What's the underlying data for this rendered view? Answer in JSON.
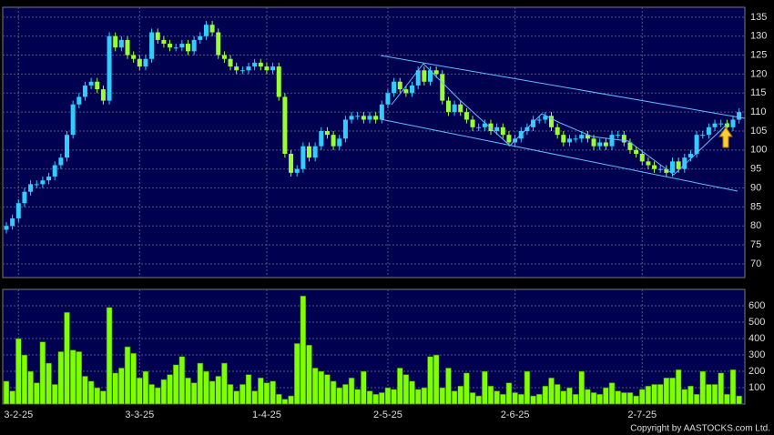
{
  "chart_data": {
    "type": "candlestick",
    "categories": [
      null,
      null,
      "3-2-25",
      null,
      null,
      null,
      null,
      null,
      null,
      null,
      null,
      null,
      null,
      null,
      null,
      null,
      null,
      null,
      null,
      null,
      null,
      null,
      "3-3-25",
      null,
      null,
      null,
      null,
      null,
      null,
      null,
      null,
      null,
      null,
      null,
      null,
      null,
      null,
      null,
      null,
      null,
      null,
      null,
      null,
      "1-4-25",
      null,
      null,
      null,
      null,
      null,
      null,
      null,
      null,
      null,
      null,
      null,
      null,
      null,
      null,
      null,
      null,
      null,
      null,
      null,
      "2-5-25",
      null,
      null,
      null,
      null,
      null,
      null,
      null,
      null,
      null,
      null,
      null,
      null,
      null,
      null,
      null,
      null,
      null,
      null,
      null,
      null,
      "2-6-25",
      null,
      null,
      null,
      null,
      null,
      null,
      null,
      null,
      null,
      null,
      null,
      null,
      null,
      null,
      null,
      null,
      null,
      null,
      null,
      null,
      "2-7-25",
      null,
      null,
      null,
      null,
      null,
      null,
      null,
      null,
      null,
      null,
      null,
      null,
      null,
      null,
      null,
      null
    ],
    "open": [
      79,
      80,
      82,
      86,
      89,
      91,
      91,
      92,
      93,
      96,
      98,
      104,
      112,
      114,
      117,
      118,
      116,
      113,
      130,
      127,
      129,
      125,
      124,
      122,
      124,
      131,
      129,
      128,
      127,
      127,
      128,
      126,
      129,
      130,
      133,
      131,
      125,
      124,
      122,
      121,
      121,
      122,
      123,
      122,
      121,
      122,
      114,
      99,
      94,
      95,
      101,
      98,
      101,
      105,
      104,
      101,
      103,
      108,
      109,
      109,
      108,
      109,
      108,
      112,
      115,
      118,
      116,
      115,
      117,
      121,
      118,
      121,
      120,
      113,
      110,
      112,
      110,
      108,
      106,
      106,
      107,
      105,
      106,
      104,
      102,
      103,
      105,
      106,
      108,
      108,
      109,
      106,
      104,
      102,
      103,
      103,
      104,
      103,
      101,
      102,
      101,
      104,
      104,
      102,
      100,
      99,
      97,
      96,
      95,
      95,
      94,
      97,
      95,
      98,
      99,
      104,
      104,
      106,
      107,
      107,
      106,
      108
    ],
    "high": [
      81,
      83,
      87,
      90,
      92,
      92,
      93,
      94,
      97,
      99,
      105,
      113,
      115,
      118,
      119,
      119,
      117,
      131,
      131,
      130,
      130,
      126,
      125,
      125,
      132,
      132,
      130,
      129,
      128,
      129,
      129,
      130,
      131,
      134,
      134,
      132,
      126,
      125,
      123,
      122,
      123,
      124,
      124,
      123,
      123,
      123,
      115,
      100,
      96,
      102,
      102,
      102,
      106,
      106,
      105,
      104,
      109,
      110,
      110,
      110,
      110,
      110,
      113,
      116,
      119,
      119,
      117,
      118,
      122,
      122,
      122,
      122,
      121,
      114,
      113,
      113,
      111,
      109,
      107,
      108,
      108,
      107,
      107,
      105,
      104,
      106,
      107,
      109,
      109,
      110,
      110,
      107,
      105,
      104,
      104,
      105,
      105,
      104,
      103,
      103,
      105,
      105,
      105,
      103,
      101,
      100,
      98,
      97,
      96,
      96,
      98,
      98,
      99,
      100,
      105,
      105,
      107,
      108,
      108,
      108,
      109,
      111
    ],
    "low": [
      78,
      79,
      81,
      85,
      88,
      90,
      90,
      91,
      92,
      95,
      97,
      103,
      111,
      113,
      116,
      115,
      112,
      112,
      126,
      126,
      124,
      123,
      121,
      121,
      123,
      128,
      127,
      126,
      126,
      126,
      125,
      125,
      128,
      129,
      130,
      124,
      123,
      121,
      120,
      120,
      120,
      121,
      121,
      120,
      120,
      113,
      98,
      93,
      93,
      94,
      97,
      97,
      100,
      103,
      100,
      100,
      102,
      107,
      108,
      107,
      107,
      107,
      107,
      111,
      114,
      115,
      114,
      114,
      116,
      117,
      117,
      119,
      112,
      109,
      109,
      109,
      107,
      105,
      105,
      105,
      104,
      104,
      103,
      101,
      101,
      102,
      104,
      105,
      107,
      107,
      105,
      103,
      101,
      101,
      102,
      102,
      102,
      100,
      100,
      100,
      100,
      103,
      101,
      99,
      98,
      96,
      95,
      94,
      94,
      93,
      93,
      94,
      94,
      97,
      98,
      103,
      103,
      105,
      106,
      105,
      105,
      107
    ],
    "close": [
      80,
      82,
      86,
      89,
      91,
      91,
      92,
      93,
      96,
      98,
      104,
      112,
      114,
      117,
      118,
      116,
      113,
      130,
      127,
      129,
      125,
      124,
      122,
      124,
      131,
      129,
      128,
      127,
      127,
      128,
      126,
      129,
      130,
      133,
      131,
      125,
      124,
      122,
      121,
      121,
      122,
      123,
      122,
      121,
      122,
      114,
      99,
      94,
      95,
      101,
      98,
      101,
      105,
      104,
      101,
      103,
      108,
      109,
      109,
      108,
      109,
      108,
      112,
      115,
      118,
      116,
      115,
      117,
      121,
      118,
      121,
      120,
      113,
      110,
      112,
      110,
      108,
      106,
      106,
      107,
      105,
      106,
      104,
      102,
      103,
      105,
      106,
      108,
      108,
      109,
      106,
      104,
      102,
      103,
      103,
      104,
      103,
      101,
      102,
      101,
      104,
      104,
      102,
      100,
      99,
      97,
      96,
      95,
      95,
      94,
      97,
      95,
      98,
      99,
      104,
      104,
      106,
      107,
      107,
      106,
      108,
      110
    ],
    "volume": [
      140,
      80,
      400,
      300,
      200,
      130,
      380,
      250,
      120,
      320,
      560,
      330,
      320,
      170,
      140,
      100,
      80,
      590,
      190,
      220,
      350,
      310,
      160,
      200,
      120,
      100,
      150,
      180,
      240,
      290,
      160,
      130,
      250,
      200,
      140,
      170,
      250,
      120,
      80,
      120,
      180,
      80,
      160,
      130,
      140,
      60,
      30,
      50,
      370,
      660,
      360,
      220,
      200,
      180,
      140,
      100,
      120,
      160,
      90,
      200,
      80,
      60,
      70,
      100,
      90,
      220,
      180,
      140,
      90,
      100,
      290,
      300,
      100,
      220,
      80,
      110,
      190,
      70,
      50,
      200,
      110,
      80,
      60,
      130,
      70,
      60,
      200,
      50,
      60,
      110,
      160,
      120,
      80,
      100,
      60,
      200,
      90,
      70,
      60,
      100,
      130,
      80,
      70,
      70,
      50,
      90,
      110,
      120,
      120,
      160,
      160,
      210,
      90,
      110,
      60,
      200,
      120,
      120,
      190,
      60,
      210,
      50
    ],
    "ylim": [
      66.4,
      137.6
    ],
    "yticks": [
      70,
      75,
      80,
      85,
      90,
      95,
      100,
      105,
      110,
      115,
      120,
      125,
      130,
      135
    ],
    "volume_ylim": [
      0,
      700
    ],
    "volume_yticks": [
      100,
      200,
      300,
      400,
      500,
      600
    ],
    "up_color": "#33ccff",
    "down_color": "#99ff33",
    "volume_color": "#80ff00",
    "grid": true,
    "copyright": "Copyright by AASTOCKS.com Ltd."
  }
}
